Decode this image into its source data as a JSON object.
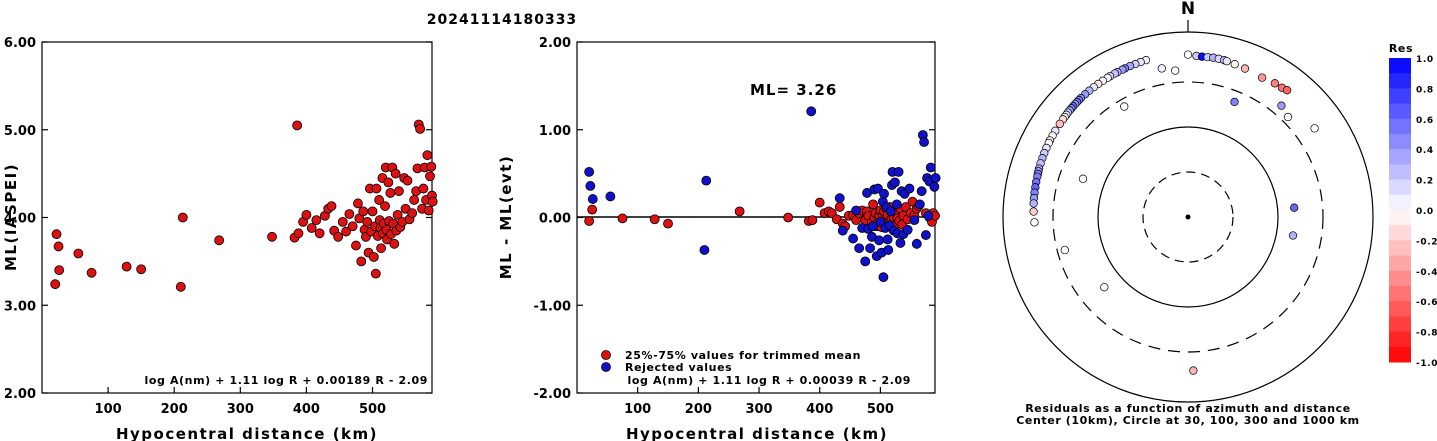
{
  "title": "20241114180333",
  "colors": {
    "accepted": "#dd1111",
    "rejected": "#1111cc"
  },
  "chart_data": [
    {
      "type": "scatter",
      "xlabel": "Hypocentral distance (km)",
      "ylabel": "ML(IASPEI)",
      "xlim": [
        0,
        590
      ],
      "ylim": [
        2.0,
        6.0
      ],
      "xticks": [
        "100",
        "200",
        "300",
        "400",
        "500"
      ],
      "yticks": [
        "2.00",
        "3.00",
        "4.00",
        "5.00",
        "6.00"
      ],
      "formula": "log A(nm) + 1.11 log R + 0.00189 R - 2.09",
      "points": [
        [
          20,
          3.24
        ],
        [
          22,
          3.81
        ],
        [
          25,
          3.67
        ],
        [
          26,
          3.4
        ],
        [
          55,
          3.59
        ],
        [
          75,
          3.37
        ],
        [
          128,
          3.44
        ],
        [
          150,
          3.41
        ],
        [
          210,
          3.21
        ],
        [
          213,
          4.0
        ],
        [
          268,
          3.74
        ],
        [
          348,
          3.78
        ],
        [
          382,
          3.77
        ],
        [
          386,
          5.05
        ],
        [
          388,
          3.82
        ],
        [
          395,
          3.95
        ],
        [
          400,
          4.03
        ],
        [
          408,
          3.88
        ],
        [
          415,
          3.97
        ],
        [
          420,
          3.82
        ],
        [
          428,
          4.02
        ],
        [
          433,
          4.1
        ],
        [
          438,
          4.13
        ],
        [
          442,
          3.85
        ],
        [
          448,
          3.78
        ],
        [
          455,
          3.95
        ],
        [
          460,
          3.84
        ],
        [
          465,
          4.04
        ],
        [
          470,
          3.9
        ],
        [
          475,
          3.68
        ],
        [
          478,
          4.16
        ],
        [
          480,
          3.99
        ],
        [
          483,
          3.5
        ],
        [
          486,
          4.07
        ],
        [
          488,
          3.86
        ],
        [
          490,
          3.78
        ],
        [
          492,
          3.95
        ],
        [
          494,
          3.6
        ],
        [
          496,
          4.33
        ],
        [
          498,
          3.84
        ],
        [
          500,
          4.07
        ],
        [
          502,
          3.55
        ],
        [
          504,
          3.9
        ],
        [
          505,
          3.36
        ],
        [
          506,
          4.33
        ],
        [
          508,
          3.79
        ],
        [
          510,
          4.2
        ],
        [
          511,
          3.97
        ],
        [
          512,
          3.88
        ],
        [
          513,
          3.65
        ],
        [
          515,
          4.45
        ],
        [
          516,
          3.82
        ],
        [
          517,
          3.93
        ],
        [
          519,
          4.13
        ],
        [
          520,
          4.57
        ],
        [
          521,
          3.86
        ],
        [
          522,
          3.75
        ],
        [
          524,
          4.4
        ],
        [
          525,
          3.96
        ],
        [
          527,
          4.28
        ],
        [
          528,
          3.81
        ],
        [
          530,
          4.57
        ],
        [
          531,
          3.93
        ],
        [
          533,
          3.7
        ],
        [
          535,
          4.5
        ],
        [
          536,
          3.85
        ],
        [
          538,
          4.03
        ],
        [
          540,
          4.3
        ],
        [
          542,
          3.89
        ],
        [
          545,
          3.95
        ],
        [
          548,
          4.45
        ],
        [
          550,
          4.1
        ],
        [
          553,
          4.42
        ],
        [
          556,
          3.98
        ],
        [
          560,
          4.05
        ],
        [
          563,
          4.2
        ],
        [
          566,
          4.3
        ],
        [
          568,
          4.56
        ],
        [
          570,
          5.06
        ],
        [
          572,
          5.01
        ],
        [
          575,
          4.1
        ],
        [
          577,
          4.33
        ],
        [
          579,
          4.57
        ],
        [
          581,
          4.2
        ],
        [
          583,
          4.71
        ],
        [
          585,
          4.08
        ],
        [
          587,
          4.47
        ],
        [
          589,
          4.58
        ],
        [
          590,
          4.25
        ],
        [
          591,
          4.18
        ]
      ]
    },
    {
      "type": "scatter",
      "xlabel": "Hypocentral distance (km)",
      "ylabel": "ML - ML(evt)",
      "xlim": [
        0,
        590
      ],
      "ylim": [
        -2.0,
        2.0
      ],
      "xticks": [
        "100",
        "200",
        "300",
        "400",
        "500"
      ],
      "yticks": [
        "-2.00",
        "-1.00",
        "0.00",
        "1.00",
        "2.00"
      ],
      "annotation": "ML= 3.26",
      "legend": [
        "25%-75% values for trimmed mean",
        "Rejected values"
      ],
      "formula": "log A(nm) + 1.11 log R + 0.00039 R - 2.09",
      "accepted": [
        [
          20,
          -0.04
        ],
        [
          25,
          0.09
        ],
        [
          75,
          -0.01
        ],
        [
          128,
          -0.02
        ],
        [
          150,
          -0.07
        ],
        [
          268,
          0.07
        ],
        [
          348,
          0.0
        ],
        [
          382,
          -0.04
        ],
        [
          388,
          -0.03
        ],
        [
          400,
          0.17
        ],
        [
          408,
          0.05
        ],
        [
          415,
          0.07
        ],
        [
          420,
          0.05
        ],
        [
          428,
          -0.02
        ],
        [
          433,
          0.12
        ],
        [
          438,
          -0.07
        ],
        [
          442,
          -0.1
        ],
        [
          448,
          0.02
        ],
        [
          455,
          0.03
        ],
        [
          460,
          -0.03
        ],
        [
          465,
          0.05
        ],
        [
          470,
          0.08
        ],
        [
          475,
          -0.03
        ],
        [
          478,
          0.07
        ],
        [
          480,
          0.02
        ],
        [
          486,
          -0.05
        ],
        [
          488,
          0.15
        ],
        [
          490,
          0.0
        ],
        [
          492,
          0.05
        ],
        [
          494,
          -0.1
        ],
        [
          496,
          -0.06
        ],
        [
          498,
          0.02
        ],
        [
          500,
          0.08
        ],
        [
          502,
          -0.11
        ],
        [
          504,
          0.03
        ],
        [
          506,
          0.07
        ],
        [
          508,
          -0.02
        ],
        [
          510,
          0.1
        ],
        [
          511,
          -0.08
        ],
        [
          512,
          0.03
        ],
        [
          515,
          -0.05
        ],
        [
          516,
          0.12
        ],
        [
          518,
          -0.02
        ],
        [
          521,
          0.04
        ],
        [
          522,
          0.0
        ],
        [
          524,
          -0.09
        ],
        [
          525,
          0.06
        ],
        [
          528,
          -0.01
        ],
        [
          531,
          -0.04
        ],
        [
          533,
          0.1
        ],
        [
          536,
          -0.08
        ],
        [
          538,
          0.02
        ],
        [
          542,
          0.12
        ],
        [
          545,
          -0.02
        ],
        [
          550,
          0.05
        ],
        [
          553,
          0.18
        ],
        [
          556,
          0.02
        ],
        [
          560,
          0.1
        ],
        [
          563,
          0.13
        ],
        [
          575,
          0.05
        ],
        [
          581,
          0.0
        ],
        [
          585,
          -0.05
        ],
        [
          587,
          0.05
        ],
        [
          590,
          0.02
        ]
      ],
      "rejected": [
        [
          20,
          0.52
        ],
        [
          22,
          0.36
        ],
        [
          26,
          0.21
        ],
        [
          55,
          0.24
        ],
        [
          210,
          -0.37
        ],
        [
          213,
          0.42
        ],
        [
          386,
          1.21
        ],
        [
          433,
          0.22
        ],
        [
          438,
          -0.15
        ],
        [
          455,
          -0.24
        ],
        [
          460,
          0.08
        ],
        [
          465,
          -0.35
        ],
        [
          470,
          -0.12
        ],
        [
          475,
          -0.5
        ],
        [
          478,
          0.28
        ],
        [
          480,
          -0.13
        ],
        [
          483,
          -0.35
        ],
        [
          486,
          -0.22
        ],
        [
          488,
          -0.1
        ],
        [
          490,
          0.32
        ],
        [
          494,
          -0.44
        ],
        [
          496,
          0.33
        ],
        [
          498,
          -0.26
        ],
        [
          500,
          -0.05
        ],
        [
          502,
          -0.4
        ],
        [
          504,
          0.18
        ],
        [
          505,
          -0.68
        ],
        [
          506,
          0.27
        ],
        [
          508,
          -0.12
        ],
        [
          510,
          0.12
        ],
        [
          512,
          -0.25
        ],
        [
          513,
          -0.37
        ],
        [
          515,
          -0.09
        ],
        [
          517,
          0.07
        ],
        [
          519,
          0.37
        ],
        [
          520,
          0.52
        ],
        [
          522,
          -0.15
        ],
        [
          524,
          0.4
        ],
        [
          527,
          0.15
        ],
        [
          528,
          -0.18
        ],
        [
          530,
          0.52
        ],
        [
          533,
          -0.29
        ],
        [
          535,
          0.3
        ],
        [
          538,
          -0.19
        ],
        [
          540,
          0.27
        ],
        [
          545,
          -0.14
        ],
        [
          548,
          0.33
        ],
        [
          556,
          -0.03
        ],
        [
          560,
          -0.3
        ],
        [
          565,
          0.15
        ],
        [
          568,
          0.3
        ],
        [
          570,
          0.94
        ],
        [
          572,
          0.86
        ],
        [
          575,
          -0.2
        ],
        [
          577,
          0.45
        ],
        [
          579,
          0.02
        ],
        [
          581,
          0.41
        ],
        [
          583,
          0.57
        ],
        [
          589,
          0.35
        ],
        [
          591,
          0.45
        ]
      ]
    },
    {
      "type": "polar",
      "north_label": "N",
      "caption_line1": "Residuals as a function of azimuth and distance",
      "caption_line2": "Center (10km), Circle at 30, 100, 300 and 1000 km",
      "colorbar_title": "Res",
      "colorbar_ticks": [
        "1.0",
        "0.8",
        "0.6",
        "0.4",
        "0.2",
        "0.0",
        "-0.2",
        "-0.4",
        "-0.6",
        "-0.8",
        "-1.0"
      ],
      "rings_km": [
        30,
        100,
        300,
        1000
      ],
      "stations": [
        [
          345,
          580,
          0.05
        ],
        [
          343,
          575,
          0.1
        ],
        [
          341,
          572,
          0.2
        ],
        [
          339,
          570,
          0.35
        ],
        [
          337,
          567,
          0.5
        ],
        [
          336,
          565,
          0.4
        ],
        [
          334,
          563,
          0.3
        ],
        [
          333,
          562,
          0.25
        ],
        [
          331,
          560,
          0.15
        ],
        [
          330,
          558,
          0.05
        ],
        [
          328,
          556,
          -0.05
        ],
        [
          326,
          555,
          -0.1
        ],
        [
          324,
          553,
          0.1
        ],
        [
          322,
          552,
          0.3
        ],
        [
          320,
          550,
          0.4
        ],
        [
          318,
          548,
          0.45
        ],
        [
          317,
          547,
          0.5
        ],
        [
          316,
          545,
          0.55
        ],
        [
          315,
          543,
          0.4
        ],
        [
          314,
          542,
          0.6
        ],
        [
          313,
          540,
          0.5
        ],
        [
          312,
          538,
          0.35
        ],
        [
          311,
          536,
          0.2
        ],
        [
          310,
          534,
          0.1
        ],
        [
          309,
          532,
          0.0
        ],
        [
          308,
          530,
          -0.15
        ],
        [
          306,
          528,
          -0.25
        ],
        [
          303,
          525,
          0.1
        ],
        [
          301,
          522,
          -0.05
        ],
        [
          299,
          520,
          -0.1
        ],
        [
          298,
          518,
          0.0
        ],
        [
          296,
          516,
          0.1
        ],
        [
          294,
          513,
          0.2
        ],
        [
          292,
          510,
          0.3
        ],
        [
          290,
          508,
          0.25
        ],
        [
          288,
          505,
          0.35
        ],
        [
          287,
          503,
          0.4
        ],
        [
          286,
          500,
          0.45
        ],
        [
          285,
          497,
          0.5
        ],
        [
          283,
          495,
          0.55
        ],
        [
          281,
          492,
          0.6
        ],
        [
          279,
          490,
          0.5
        ],
        [
          277,
          488,
          0.4
        ],
        [
          275,
          485,
          0.3
        ],
        [
          272,
          480,
          -0.2
        ],
        [
          268,
          470,
          0.0
        ],
        [
          350,
          440,
          0.05
        ],
        [
          0,
          580,
          0.0
        ],
        [
          3,
          565,
          0.2
        ],
        [
          5,
          560,
          0.95
        ],
        [
          7,
          562,
          0.2
        ],
        [
          9,
          565,
          0.3
        ],
        [
          11,
          563,
          0.15
        ],
        [
          13,
          560,
          0.25
        ],
        [
          14,
          555,
          0.1
        ],
        [
          17,
          545,
          -0.05
        ],
        [
          21,
          535,
          -0.3
        ],
        [
          28,
          520,
          -0.4
        ],
        [
          33,
          540,
          -0.5
        ],
        [
          36,
          545,
          -0.55
        ],
        [
          38,
          560,
          -0.6
        ],
        [
          55,
          480,
          0.0
        ],
        [
          40,
          385,
          0.4
        ],
        [
          355,
          400,
          0.0
        ],
        [
          45,
          350,
          0.0
        ],
        [
          22,
          230,
          0.5
        ],
        [
          85,
          150,
          0.6
        ],
        [
          100,
          150,
          0.3
        ],
        [
          330,
          250,
          0.0
        ],
        [
          290,
          170,
          0.0
        ],
        [
          255,
          250,
          0.0
        ],
        [
          230,
          160,
          0.0
        ],
        [
          178,
          470,
          -0.3
        ]
      ]
    }
  ]
}
